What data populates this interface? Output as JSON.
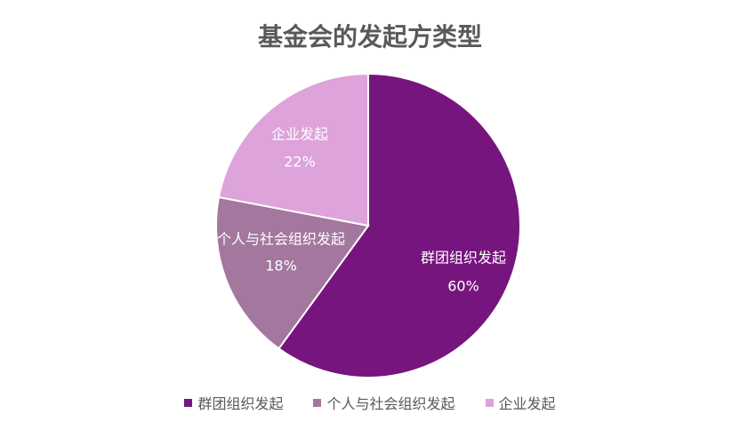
{
  "chart_data": {
    "type": "pie",
    "title": "基金会的发起方类型",
    "slices": [
      {
        "label": "群团组织发起",
        "value": 60,
        "display": "60%",
        "color": "#76157E"
      },
      {
        "label": "个人与社会组织发起",
        "value": 18,
        "display": "18%",
        "color": "#A3779E"
      },
      {
        "label": "企业发起",
        "value": 22,
        "display": "22%",
        "color": "#DDA3DA"
      }
    ],
    "data_label_color": "#FFFFFF",
    "legend_position": "bottom"
  }
}
